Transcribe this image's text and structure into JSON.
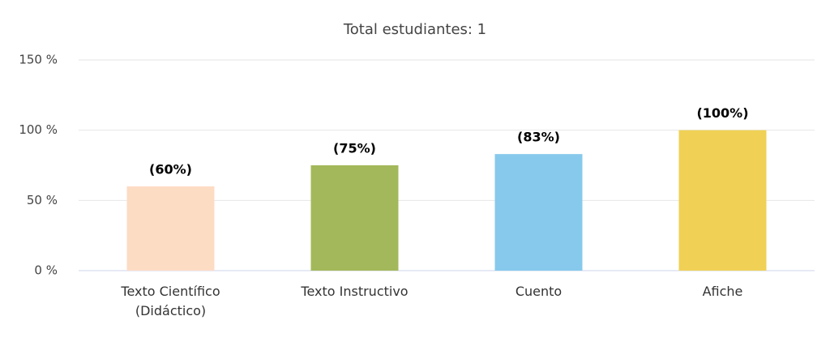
{
  "chart_data": {
    "type": "bar",
    "title": "Total estudiantes: 1",
    "categories": [
      "Texto Científico (Didáctico)",
      "Texto Instructivo",
      "Cuento",
      "Afiche"
    ],
    "values": [
      60,
      75,
      83,
      100
    ],
    "value_labels": [
      "(60%)",
      "(75%)",
      "(83%)",
      "(100%)"
    ],
    "colors": [
      "#fddcc4",
      "#a3b85a",
      "#87c9ec",
      "#f0d155"
    ],
    "ylim": [
      0,
      150
    ],
    "yticks": [
      {
        "value": 0,
        "label": "0 %"
      },
      {
        "value": 50,
        "label": "50 %"
      },
      {
        "value": 100,
        "label": "100 %"
      },
      {
        "value": 150,
        "label": "150 %"
      }
    ],
    "grid": true
  }
}
